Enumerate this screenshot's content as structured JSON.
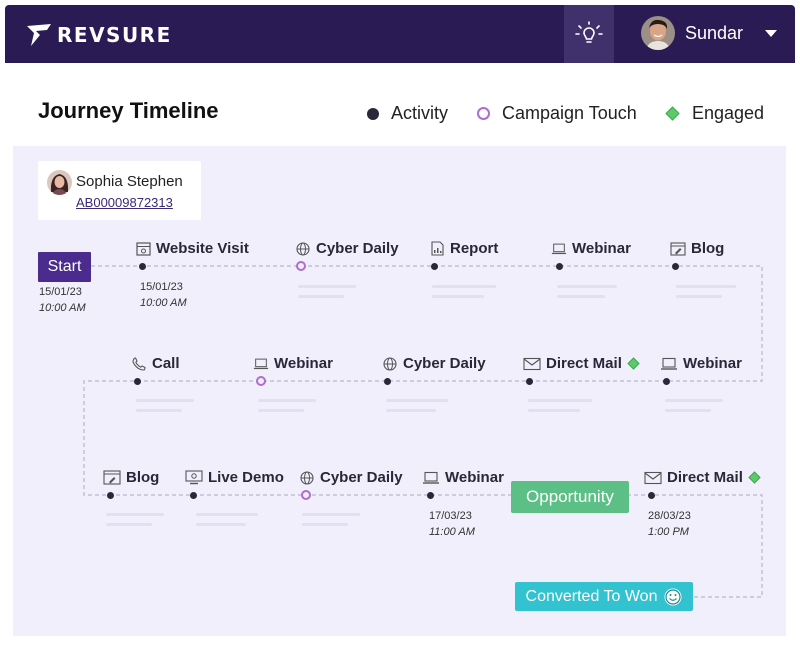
{
  "header": {
    "logo_text": "REVSURE",
    "user_name": "Sundar",
    "icons": {
      "bulb": "lightbulb-icon",
      "caret": "caret-down-icon"
    }
  },
  "title": "Journey Timeline",
  "legend": {
    "activity": "Activity",
    "campaign": "Campaign Touch",
    "engaged": "Engaged"
  },
  "colors": {
    "header_bg": "#2b1b55",
    "start": "#4b2c8e",
    "campaign": "#b06cd0",
    "engaged": "#5cc96a",
    "opportunity": "#5cbf86",
    "won": "#33c2cf"
  },
  "contact": {
    "name": "Sophia Stephen",
    "id": "AB00009872313"
  },
  "milestones": {
    "start": "Start",
    "opportunity": "Opportunity",
    "won": "Converted To Won"
  },
  "start_datetime": {
    "date": "15/01/23",
    "time": "10:00 AM"
  },
  "row1": [
    {
      "label": "Website Visit",
      "icon": "browser-icon",
      "type": "activity",
      "date": "15/01/23",
      "time": "10:00 AM"
    },
    {
      "label": "Cyber Daily",
      "icon": "globe-icon",
      "type": "campaign"
    },
    {
      "label": "Report",
      "icon": "report-icon",
      "type": "activity"
    },
    {
      "label": "Webinar",
      "icon": "laptop-icon",
      "type": "activity"
    },
    {
      "label": "Blog",
      "icon": "blog-icon",
      "type": "activity"
    }
  ],
  "row2": [
    {
      "label": "Call",
      "icon": "phone-icon",
      "type": "activity"
    },
    {
      "label": "Webinar",
      "icon": "laptop-icon",
      "type": "campaign"
    },
    {
      "label": "Cyber Daily",
      "icon": "globe-icon",
      "type": "activity"
    },
    {
      "label": "Direct Mail",
      "icon": "mail-icon",
      "type": "activity",
      "engaged": true
    },
    {
      "label": "Webinar",
      "icon": "laptop-icon",
      "type": "activity"
    }
  ],
  "row3": [
    {
      "label": "Blog",
      "icon": "blog-icon",
      "type": "activity"
    },
    {
      "label": "Live Demo",
      "icon": "monitor-icon",
      "type": "activity"
    },
    {
      "label": "Cyber Daily",
      "icon": "globe-icon",
      "type": "campaign"
    },
    {
      "label": "Webinar",
      "icon": "laptop-icon",
      "type": "activity",
      "date": "17/03/23",
      "time": "11:00 AM"
    },
    {
      "label": "Direct Mail",
      "icon": "mail-icon",
      "type": "activity",
      "engaged": true,
      "date": "28/03/23",
      "time": "1:00 PM"
    }
  ]
}
